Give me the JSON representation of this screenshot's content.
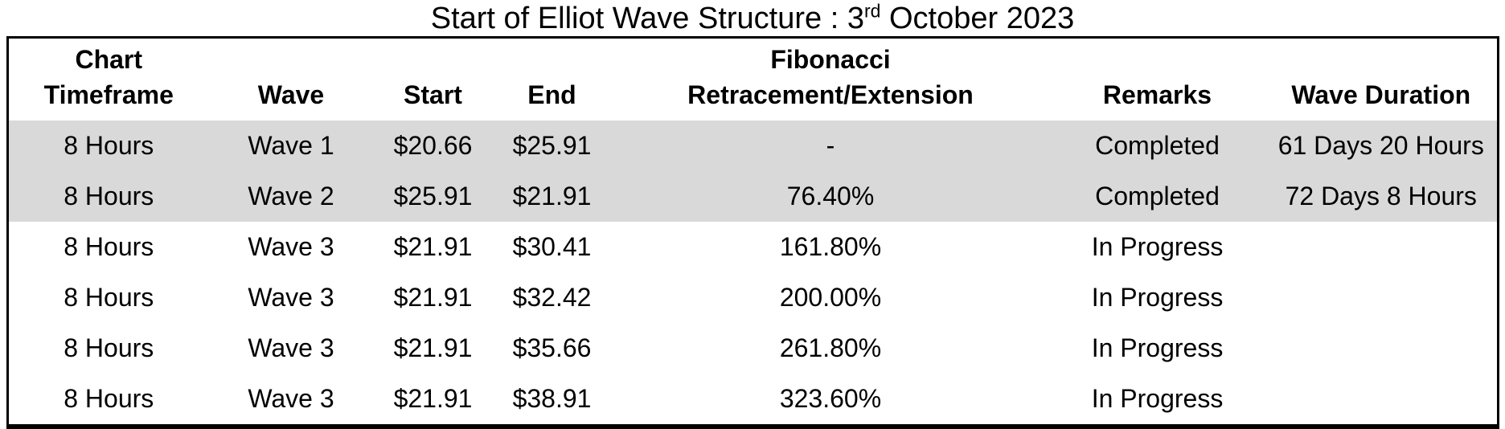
{
  "title": {
    "text_before_superscript": "Start of Elliot Wave Structure : 3",
    "superscript": "rd",
    "text_after_superscript": " October 2023"
  },
  "colors": {
    "highlight_row_background": "#d9d9d9",
    "border": "#000000",
    "text": "#000000",
    "background": "#ffffff"
  },
  "table": {
    "headers": [
      {
        "id": "chart-timeframe",
        "lines": [
          "Chart",
          "Timeframe"
        ]
      },
      {
        "id": "wave",
        "lines": [
          "Wave"
        ]
      },
      {
        "id": "start",
        "lines": [
          "Start"
        ]
      },
      {
        "id": "end",
        "lines": [
          "End"
        ]
      },
      {
        "id": "fibonacci-retracement-extension",
        "lines": [
          "Fibonacci",
          "Retracement/Extension"
        ]
      },
      {
        "id": "remarks",
        "lines": [
          "Remarks"
        ]
      },
      {
        "id": "wave-duration",
        "lines": [
          "Wave Duration"
        ]
      }
    ],
    "rows": [
      {
        "chart_timeframe": "8 Hours",
        "wave": "Wave 1",
        "start": "$20.66",
        "end": "$25.91",
        "fibonacci": "-",
        "remarks": "Completed",
        "wave_duration": "61 Days 20 Hours",
        "highlighted": true
      },
      {
        "chart_timeframe": "8 Hours",
        "wave": "Wave 2",
        "start": "$25.91",
        "end": "$21.91",
        "fibonacci": "76.40%",
        "remarks": "Completed",
        "wave_duration": "72 Days 8 Hours",
        "highlighted": true
      },
      {
        "chart_timeframe": "8 Hours",
        "wave": "Wave 3",
        "start": "$21.91",
        "end": "$30.41",
        "fibonacci": "161.80%",
        "remarks": "In Progress",
        "wave_duration": "",
        "highlighted": false
      },
      {
        "chart_timeframe": "8 Hours",
        "wave": "Wave 3",
        "start": "$21.91",
        "end": "$32.42",
        "fibonacci": "200.00%",
        "remarks": "In Progress",
        "wave_duration": "",
        "highlighted": false
      },
      {
        "chart_timeframe": "8 Hours",
        "wave": "Wave 3",
        "start": "$21.91",
        "end": "$35.66",
        "fibonacci": "261.80%",
        "remarks": "In Progress",
        "wave_duration": "",
        "highlighted": false
      },
      {
        "chart_timeframe": "8 Hours",
        "wave": "Wave 3",
        "start": "$21.91",
        "end": "$38.91",
        "fibonacci": "323.60%",
        "remarks": "In Progress",
        "wave_duration": "",
        "highlighted": false
      }
    ]
  }
}
